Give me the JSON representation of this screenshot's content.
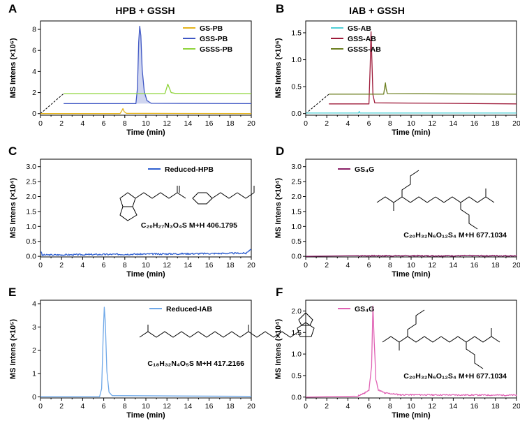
{
  "panel_titles": [
    "HPB + GSSH",
    "IAB + GSSH"
  ],
  "chart_data": [
    {
      "id": "A",
      "type": "line",
      "title": "HPB + GSSH",
      "xlabel": "Time (min)",
      "ylabel": "MS Intens (×10⁶)",
      "xlim": [
        0,
        20
      ],
      "ylim": [
        -0.15,
        8.8
      ],
      "xticks": [
        "0",
        "2",
        "4",
        "6",
        "8",
        "10",
        "12",
        "14",
        "16",
        "18",
        "20"
      ],
      "yticks": [
        {
          "v": 0,
          "label": "0"
        },
        {
          "v": 2,
          "label": "2"
        },
        {
          "v": 4,
          "label": "4"
        },
        {
          "v": 6,
          "label": "6"
        },
        {
          "v": 8,
          "label": "8"
        }
      ],
      "series": [
        {
          "name": "GS-PB",
          "color": "#E4B41C",
          "fill": false,
          "points": [
            [
              0,
              0
            ],
            [
              7.55,
              0
            ],
            [
              7.7,
              0.25
            ],
            [
              7.82,
              0.48
            ],
            [
              7.95,
              0.18
            ],
            [
              8.15,
              0.03
            ],
            [
              20,
              0
            ]
          ]
        },
        {
          "name": "GSS-PB",
          "color": "#3F57C4",
          "fill": true,
          "points": [
            [
              2.2,
              0.95
            ],
            [
              9.05,
              0.95
            ],
            [
              9.2,
              2.4
            ],
            [
              9.32,
              6.8
            ],
            [
              9.42,
              8.3
            ],
            [
              9.52,
              7.4
            ],
            [
              9.65,
              4.2
            ],
            [
              9.85,
              2.1
            ],
            [
              10.1,
              1.25
            ],
            [
              10.5,
              0.98
            ],
            [
              20,
              0.95
            ]
          ]
        },
        {
          "name": "GSSS-PB",
          "color": "#8ED43A",
          "fill": false,
          "points": [
            [
              2.2,
              1.9
            ],
            [
              11.8,
              1.9
            ],
            [
              11.95,
              2.35
            ],
            [
              12.08,
              2.8
            ],
            [
              12.2,
              2.5
            ],
            [
              12.4,
              2.0
            ],
            [
              12.8,
              1.92
            ],
            [
              20,
              1.9
            ]
          ]
        }
      ],
      "offsets": [
        1.9
      ]
    },
    {
      "id": "B",
      "type": "line",
      "title": "IAB + GSSH",
      "xlabel": "Time (min)",
      "ylabel": "MS Intens (×10⁶)",
      "xlim": [
        0,
        20
      ],
      "ylim": [
        -0.03,
        1.72
      ],
      "xticks": [
        "0",
        "2",
        "4",
        "6",
        "8",
        "10",
        "12",
        "14",
        "16",
        "18",
        "20"
      ],
      "yticks": [
        {
          "v": 0,
          "label": "0.0"
        },
        {
          "v": 0.5,
          "label": "0.5"
        },
        {
          "v": 1.0,
          "label": "1.0"
        },
        {
          "v": 1.5,
          "label": "1.5"
        }
      ],
      "series": [
        {
          "name": "GS-AB",
          "color": "#4FCFD6",
          "fill": false,
          "points": [
            [
              0,
              0.01
            ],
            [
              5.0,
              0.01
            ],
            [
              5.08,
              0.04
            ],
            [
              5.16,
              0.01
            ],
            [
              20,
              0.01
            ]
          ]
        },
        {
          "name": "GSS-AB",
          "color": "#9E1B3A",
          "fill": false,
          "points": [
            [
              2.2,
              0.18
            ],
            [
              6.0,
              0.18
            ],
            [
              6.12,
              0.9
            ],
            [
              6.2,
              1.52
            ],
            [
              6.28,
              1.0
            ],
            [
              6.38,
              0.35
            ],
            [
              6.55,
              0.2
            ],
            [
              20,
              0.18
            ]
          ]
        },
        {
          "name": "GSSS-AB",
          "color": "#6B7E1E",
          "fill": false,
          "points": [
            [
              2.2,
              0.36
            ],
            [
              7.4,
              0.36
            ],
            [
              7.5,
              0.5
            ],
            [
              7.56,
              0.57
            ],
            [
              7.63,
              0.46
            ],
            [
              7.75,
              0.37
            ],
            [
              20,
              0.36
            ]
          ]
        }
      ],
      "offsets": [
        0.36
      ]
    },
    {
      "id": "C",
      "type": "line",
      "title": "",
      "xlabel": "Time (min)",
      "ylabel": "MS Intens (×10⁴)",
      "xlim": [
        0,
        20
      ],
      "ylim": [
        -0.02,
        3.25
      ],
      "xticks": [
        "0",
        "2",
        "4",
        "6",
        "8",
        "10",
        "12",
        "14",
        "16",
        "18",
        "20"
      ],
      "yticks": [
        {
          "v": 0,
          "label": "0.0"
        },
        {
          "v": 0.5,
          "label": "0.5"
        },
        {
          "v": 1.0,
          "label": "1.0"
        },
        {
          "v": 1.5,
          "label": "1.5"
        },
        {
          "v": 2.0,
          "label": "2.0"
        },
        {
          "v": 2.5,
          "label": "2.5"
        },
        {
          "v": 3.0,
          "label": "3.0"
        }
      ],
      "series": [
        {
          "name": "Reduced-HPB",
          "color": "#2E5FD0",
          "fill": false,
          "noise": {
            "start": 0.05,
            "end": 20,
            "amp": 0.05,
            "seed": 3
          },
          "points": [
            [
              0.05,
              0.14
            ],
            [
              0.15,
              0.02
            ],
            [
              19.5,
              0.08
            ],
            [
              19.8,
              0.18
            ],
            [
              20,
              0.22
            ]
          ]
        }
      ],
      "formula": "C₂₀H₂₇N₃O₄S M+H 406.1795"
    },
    {
      "id": "D",
      "type": "line",
      "title": "",
      "xlabel": "Time (min)",
      "ylabel": "MS Intens (×10⁴)",
      "xlim": [
        0,
        20
      ],
      "ylim": [
        -0.02,
        3.25
      ],
      "xticks": [
        "0",
        "2",
        "4",
        "6",
        "8",
        "10",
        "12",
        "14",
        "16",
        "18",
        "20"
      ],
      "yticks": [
        {
          "v": 0,
          "label": "0.0"
        },
        {
          "v": 0.5,
          "label": "0.5"
        },
        {
          "v": 1.0,
          "label": "1.0"
        },
        {
          "v": 1.5,
          "label": "1.5"
        },
        {
          "v": 2.0,
          "label": "2.0"
        },
        {
          "v": 2.5,
          "label": "2.5"
        },
        {
          "v": 3.0,
          "label": "3.0"
        }
      ],
      "series": [
        {
          "name": "GS₄G",
          "color": "#8A1F66",
          "fill": false,
          "noise": {
            "start": 5.0,
            "end": 20,
            "amp": 0.04,
            "seed": 7
          },
          "points": [
            [
              0,
              0.0
            ],
            [
              20,
              0.0
            ]
          ]
        }
      ],
      "formula": "C₂₀H₃₂N₆O₁₂S₄ M+H 677.1034"
    },
    {
      "id": "E",
      "type": "line",
      "title": "",
      "xlabel": "Time (min)",
      "ylabel": "MS Intens (×10⁵)",
      "xlim": [
        0,
        20
      ],
      "ylim": [
        -0.05,
        4.15
      ],
      "xticks": [
        "0",
        "2",
        "4",
        "6",
        "8",
        "10",
        "12",
        "14",
        "16",
        "18",
        "20"
      ],
      "yticks": [
        {
          "v": 0,
          "label": "0"
        },
        {
          "v": 1,
          "label": "1"
        },
        {
          "v": 2,
          "label": "2"
        },
        {
          "v": 3,
          "label": "3"
        },
        {
          "v": 4,
          "label": "4"
        }
      ],
      "series": [
        {
          "name": "Reduced-IAB",
          "color": "#6FA8E8",
          "fill": false,
          "points": [
            [
              0,
              0.0
            ],
            [
              5.6,
              0.0
            ],
            [
              5.8,
              0.35
            ],
            [
              5.95,
              2.6
            ],
            [
              6.05,
              3.85
            ],
            [
              6.15,
              3.2
            ],
            [
              6.3,
              1.1
            ],
            [
              6.5,
              0.2
            ],
            [
              6.8,
              0.05
            ],
            [
              20,
              0.02
            ]
          ]
        }
      ],
      "formula": "C₁₈H₃₂N₄O₅S M+H 417.2166"
    },
    {
      "id": "F",
      "type": "line",
      "title": "",
      "xlabel": "Time (min)",
      "ylabel": "MS Intens (×10⁴)",
      "xlim": [
        0,
        20
      ],
      "ylim": [
        -0.02,
        2.25
      ],
      "xticks": [
        "0",
        "2",
        "4",
        "6",
        "8",
        "10",
        "12",
        "14",
        "16",
        "18",
        "20"
      ],
      "yticks": [
        {
          "v": 0,
          "label": "0.0"
        },
        {
          "v": 0.5,
          "label": "0.5"
        },
        {
          "v": 1.0,
          "label": "1.0"
        },
        {
          "v": 1.5,
          "label": "1.5"
        },
        {
          "v": 2.0,
          "label": "2.0"
        }
      ],
      "series": [
        {
          "name": "GS₄G",
          "color": "#E062B4",
          "fill": false,
          "noise": {
            "start": 5.0,
            "end": 20,
            "amp": 0.03,
            "seed": 11
          },
          "points": [
            [
              0,
              0.0
            ],
            [
              5.0,
              0.02
            ],
            [
              5.6,
              0.08
            ],
            [
              6.0,
              0.15
            ],
            [
              6.25,
              0.7
            ],
            [
              6.38,
              2.1
            ],
            [
              6.5,
              1.3
            ],
            [
              6.65,
              0.4
            ],
            [
              6.9,
              0.15
            ],
            [
              7.5,
              0.08
            ],
            [
              9,
              0.04
            ],
            [
              20,
              0.03
            ]
          ]
        }
      ],
      "formula": "C₂₀H₃₂N₆O₁₂S₄ M+H 677.1034"
    }
  ]
}
